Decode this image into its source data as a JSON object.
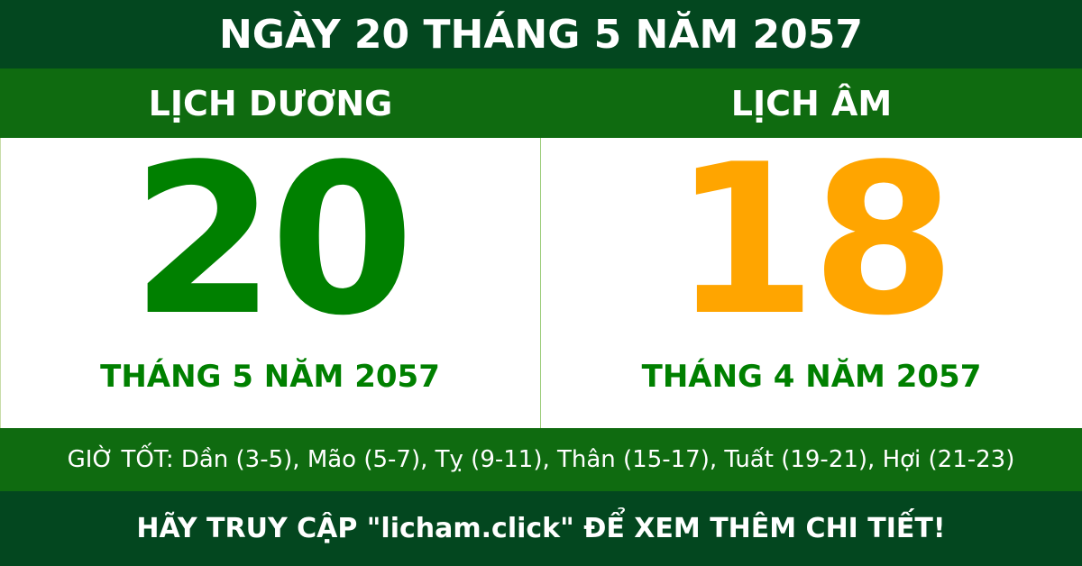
{
  "header": {
    "title": "NGÀY 20 THÁNG 5 NĂM 2057"
  },
  "solar": {
    "label": "LỊCH DƯƠNG",
    "day": "20",
    "month_year": "THÁNG 5 NĂM 2057"
  },
  "lunar": {
    "label": "LỊCH ÂM",
    "day": "18",
    "month_year": "THÁNG 4 NĂM 2057"
  },
  "good_hours": "GIỜ TỐT: Dần (3-5), Mão (5-7), Tỵ (9-11), Thân (15-17), Tuất (19-21), Hợi (21-23)",
  "footer": "HÃY TRUY CẬP \"licham.click\" ĐỂ XEM THÊM CHI TIẾT!",
  "colors": {
    "dark_green": "#03471f",
    "band_green": "#0f6b10",
    "solar_day": "#008000",
    "lunar_day": "#ffa500"
  }
}
